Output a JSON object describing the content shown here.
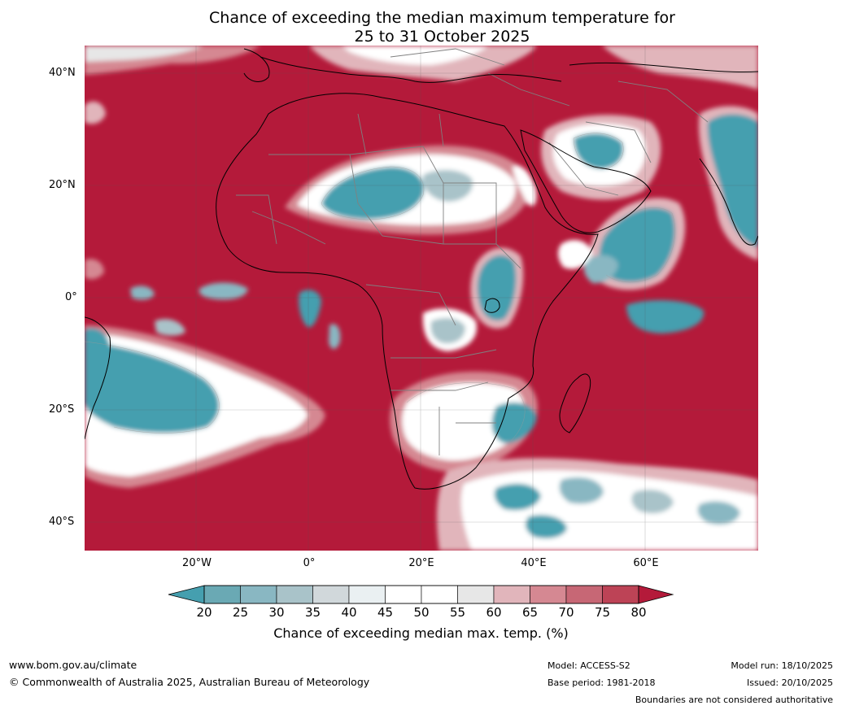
{
  "title_line1": "Chance of exceeding the median maximum temperature for",
  "title_line2": "25 to 31 October 2025",
  "lat_ticks": [
    "40°N",
    "20°N",
    "0°",
    "20°S",
    "40°S"
  ],
  "lon_ticks": [
    "20°W",
    "0°",
    "20°E",
    "40°E",
    "60°E"
  ],
  "colorbar": {
    "title": "Chance of exceeding median max. temp. (%)",
    "ticks": [
      "20",
      "25",
      "30",
      "35",
      "40",
      "45",
      "50",
      "55",
      "60",
      "65",
      "70",
      "75",
      "80"
    ],
    "colors": [
      "#459faf",
      "#6aa9b4",
      "#89b7c2",
      "#a9c3c9",
      "#d1d8db",
      "#eaf0f2",
      "#ffffff",
      "#ffffff",
      "#e7e7e7",
      "#e1b5bb",
      "#d58892",
      "#c76775",
      "#bd4356",
      "#b41a3a"
    ]
  },
  "legend_colors": {
    "low": "#459faf",
    "high": "#b41a3a",
    "neutral": "#ffffff",
    "land_border": "#000000"
  },
  "footer": {
    "website": "www.bom.gov.au/climate",
    "copyright": "© Commonwealth of Australia 2025, Australian Bureau of Meteorology",
    "model": "Model: ACCESS-S2",
    "base_period": "Base period: 1981-2018",
    "model_run": "Model run: 18/10/2025",
    "issued": "Issued: 20/10/2025",
    "disclaimer": "Boundaries are not considered authoritative"
  }
}
